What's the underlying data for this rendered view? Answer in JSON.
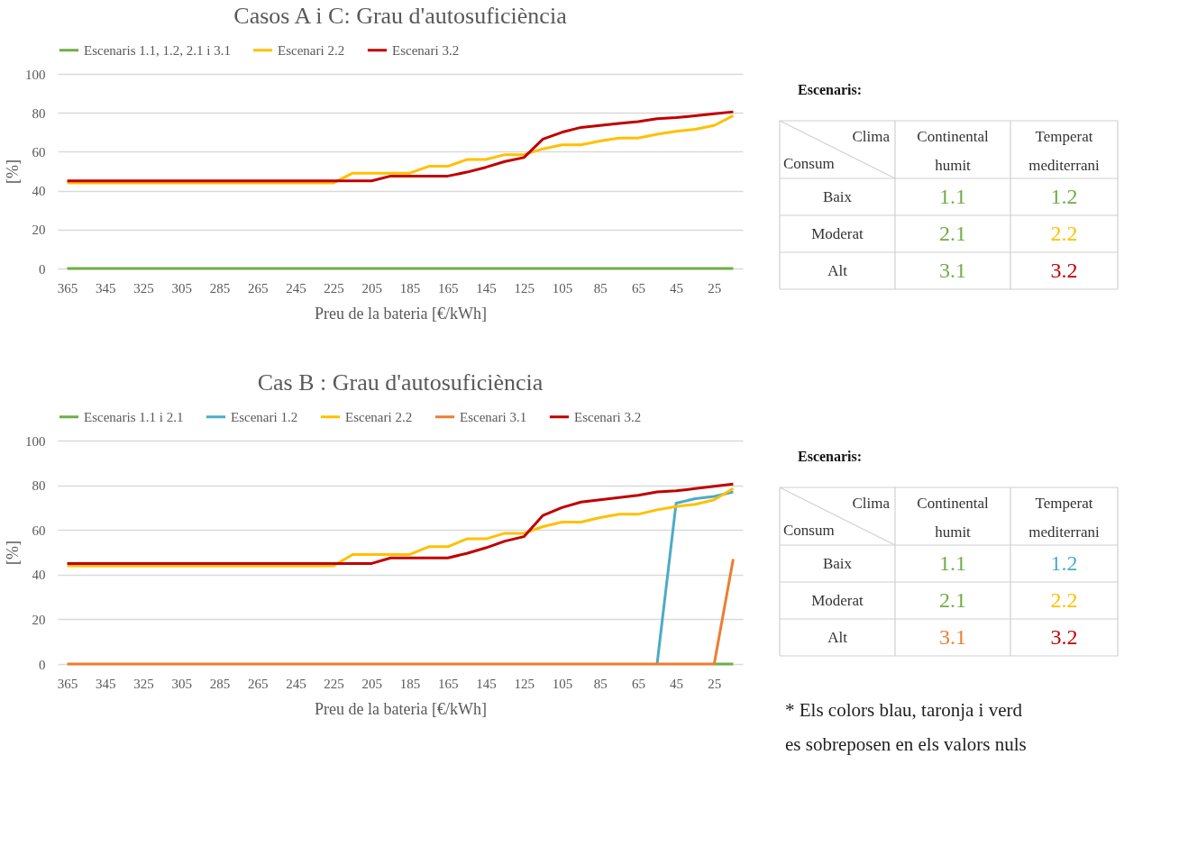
{
  "chart_data": [
    {
      "type": "line",
      "title": "Casos A i C: Grau d'autosuficiència",
      "xlabel": "Preu de la bateria [€/kWh]",
      "ylabel": "[%]",
      "grid": "y",
      "legend": "top",
      "categories": [
        "365",
        null,
        "345",
        null,
        "325",
        null,
        "305",
        null,
        "285",
        null,
        "265",
        null,
        "245",
        null,
        "225",
        null,
        "205",
        null,
        "185",
        null,
        "165",
        null,
        "145",
        null,
        "125",
        null,
        "105",
        null,
        "85",
        null,
        "65",
        null,
        "45",
        null,
        "25",
        null
      ],
      "ylim": [
        0,
        100
      ],
      "yticks": [
        0,
        20,
        40,
        60,
        80,
        100
      ],
      "series": [
        {
          "name": "Escenaris 1.1, 1.2, 2.1 i 3.1",
          "color": "#70ad47",
          "values": [
            0,
            0,
            0,
            0,
            0,
            0,
            0,
            0,
            0,
            0,
            0,
            0,
            0,
            0,
            0,
            0,
            0,
            0,
            0,
            0,
            0,
            0,
            0,
            0,
            0,
            0,
            0,
            0,
            0,
            0,
            0,
            0,
            0,
            0,
            0,
            0
          ]
        },
        {
          "name": "Escenari 2.2",
          "color": "#ffc000",
          "values": [
            44,
            44,
            44,
            44,
            44,
            44,
            44,
            44,
            44,
            44,
            44,
            44,
            44,
            44,
            44,
            49,
            49,
            49,
            49,
            52.5,
            52.5,
            56,
            56,
            58.5,
            58.5,
            61.5,
            63.5,
            63.5,
            65.5,
            67,
            67,
            69,
            70.5,
            71.5,
            73.5,
            78.5
          ]
        },
        {
          "name": "Escenari 3.2",
          "color": "#c00000",
          "values": [
            45,
            45,
            45,
            45,
            45,
            45,
            45,
            45,
            45,
            45,
            45,
            45,
            45,
            45,
            45,
            45,
            45,
            47.5,
            47.5,
            47.5,
            47.5,
            49.5,
            52,
            55,
            57,
            66.5,
            70,
            72.5,
            73.5,
            74.5,
            75.5,
            77,
            77.5,
            78.5,
            79.5,
            80.5
          ]
        }
      ]
    },
    {
      "type": "other",
      "title": "Escenaris:",
      "xlabel": "Clima",
      "ylabel": "Consum",
      "categories": [
        "Continental humit",
        "Temperat mediterrani"
      ],
      "y_categories": [
        "Baix",
        "Moderat",
        "Alt"
      ],
      "cell_labels": [
        [
          "1.1",
          "1.2"
        ],
        [
          "2.1",
          "2.2"
        ],
        [
          "3.1",
          "3.2"
        ]
      ],
      "colors": [
        "#70ad47",
        "#70ad47",
        "#70ad47",
        "#ffc000",
        "#70ad47",
        "#c00000"
      ]
    },
    {
      "type": "line",
      "title": "Cas B : Grau d'autosuficiència",
      "xlabel": "Preu de la bateria [€/kWh]",
      "ylabel": "[%]",
      "grid": "y",
      "legend": "top",
      "categories": [
        "365",
        null,
        "345",
        null,
        "325",
        null,
        "305",
        null,
        "285",
        null,
        "265",
        null,
        "245",
        null,
        "225",
        null,
        "205",
        null,
        "185",
        null,
        "165",
        null,
        "145",
        null,
        "125",
        null,
        "105",
        null,
        "85",
        null,
        "65",
        null,
        "45",
        null,
        "25",
        null
      ],
      "ylim": [
        0,
        100
      ],
      "yticks": [
        0,
        20,
        40,
        60,
        80,
        100
      ],
      "series": [
        {
          "name": "Escenaris 1.1 i 2.1",
          "color": "#70ad47",
          "values": [
            null,
            null,
            null,
            null,
            null,
            null,
            null,
            null,
            null,
            null,
            null,
            null,
            null,
            null,
            null,
            null,
            null,
            null,
            null,
            null,
            null,
            null,
            null,
            null,
            null,
            null,
            null,
            null,
            null,
            null,
            null,
            null,
            null,
            null,
            0,
            0
          ]
        },
        {
          "name": "Escenari 1.2",
          "color": "#4bacc6",
          "values": [
            null,
            null,
            null,
            null,
            null,
            null,
            null,
            null,
            null,
            null,
            null,
            null,
            null,
            null,
            null,
            null,
            null,
            null,
            null,
            null,
            null,
            null,
            null,
            null,
            null,
            null,
            null,
            null,
            null,
            null,
            null,
            0,
            72,
            74,
            75,
            77
          ]
        },
        {
          "name": "Escenari 2.2",
          "color": "#ffc000",
          "values": [
            44,
            44,
            44,
            44,
            44,
            44,
            44,
            44,
            44,
            44,
            44,
            44,
            44,
            44,
            44,
            49,
            49,
            49,
            49,
            52.5,
            52.5,
            56,
            56,
            58.5,
            58.5,
            61.5,
            63.5,
            63.5,
            65.5,
            67,
            67,
            69,
            70.5,
            71.5,
            73.5,
            78.5
          ]
        },
        {
          "name": "Escenari 3.1",
          "color": "#ed7d31",
          "values": [
            0,
            0,
            0,
            0,
            0,
            0,
            0,
            0,
            0,
            0,
            0,
            0,
            0,
            0,
            0,
            0,
            0,
            0,
            0,
            0,
            0,
            0,
            0,
            0,
            0,
            0,
            0,
            0,
            0,
            0,
            0,
            0,
            0,
            0,
            0,
            47
          ]
        },
        {
          "name": "Escenari 3.2",
          "color": "#c00000",
          "values": [
            45,
            45,
            45,
            45,
            45,
            45,
            45,
            45,
            45,
            45,
            45,
            45,
            45,
            45,
            45,
            45,
            45,
            47.5,
            47.5,
            47.5,
            47.5,
            49.5,
            52,
            55,
            57,
            66.5,
            70,
            72.5,
            73.5,
            74.5,
            75.5,
            77,
            77.5,
            78.5,
            79.5,
            80.5
          ]
        }
      ]
    },
    {
      "type": "other",
      "title": "Escenaris:",
      "xlabel": "Clima",
      "ylabel": "Consum",
      "categories": [
        "Continental humit",
        "Temperat mediterrani"
      ],
      "y_categories": [
        "Baix",
        "Moderat",
        "Alt"
      ],
      "cell_labels": [
        [
          "1.1",
          "1.2"
        ],
        [
          "2.1",
          "2.2"
        ],
        [
          "3.1",
          "3.2"
        ]
      ],
      "colors": [
        "#70ad47",
        "#4bacc6",
        "#70ad47",
        "#ffc000",
        "#ed7d31",
        "#c00000"
      ],
      "annotations": [
        "* Els colors blau, taronja i verd es sobreposen en els valors nuls"
      ]
    }
  ]
}
